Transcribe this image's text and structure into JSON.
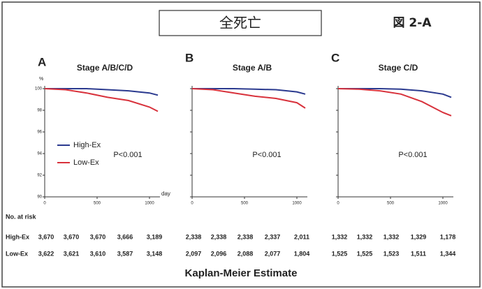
{
  "header": {
    "title": "全死亡",
    "figure": "図 2-A"
  },
  "chart_data": [
    {
      "type": "line",
      "letter": "A",
      "title": "Stage A/B/C/D",
      "xlabel": "day",
      "ylabel": "%",
      "legend": true,
      "xlim": [
        0,
        1100
      ],
      "ylim": [
        90,
        100
      ],
      "xticks": [
        0,
        500,
        1000
      ],
      "yticks": [
        90,
        92,
        94,
        96,
        98,
        100
      ],
      "ytick_labels": true,
      "x": [
        0,
        200,
        400,
        600,
        800,
        1000,
        1080
      ],
      "series": [
        {
          "name": "High-Ex",
          "color": "#2b3a8f",
          "values": [
            100,
            100,
            100,
            99.9,
            99.8,
            99.6,
            99.4
          ]
        },
        {
          "name": "Low-Ex",
          "color": "#d8323c",
          "values": [
            100,
            99.9,
            99.6,
            99.2,
            98.9,
            98.3,
            97.9
          ]
        }
      ],
      "annotation": "P<0.001"
    },
    {
      "type": "line",
      "letter": "B",
      "title": "Stage A/B",
      "legend": false,
      "xlim": [
        0,
        1100
      ],
      "ylim": [
        90,
        100
      ],
      "xticks": [
        0,
        500,
        1000
      ],
      "yticks": [
        90,
        92,
        94,
        96,
        98,
        100
      ],
      "ytick_labels": false,
      "x": [
        0,
        200,
        400,
        600,
        800,
        1000,
        1080
      ],
      "series": [
        {
          "color": "#2b3a8f",
          "values": [
            100,
            100,
            100,
            99.95,
            99.9,
            99.7,
            99.5
          ]
        },
        {
          "color": "#d8323c",
          "values": [
            100,
            99.9,
            99.6,
            99.3,
            99.1,
            98.7,
            98.2
          ]
        }
      ],
      "annotation": "P<0.001"
    },
    {
      "type": "line",
      "letter": "C",
      "title": "Stage C/D",
      "legend": false,
      "xlim": [
        0,
        1100
      ],
      "ylim": [
        90,
        100
      ],
      "xticks": [
        0,
        500,
        1000
      ],
      "yticks": [
        90,
        92,
        94,
        96,
        98,
        100
      ],
      "ytick_labels": false,
      "x": [
        0,
        200,
        400,
        600,
        800,
        1000,
        1080
      ],
      "series": [
        {
          "color": "#2b3a8f",
          "values": [
            100,
            100,
            100,
            99.95,
            99.8,
            99.5,
            99.2
          ]
        },
        {
          "color": "#d8323c",
          "values": [
            100,
            99.95,
            99.8,
            99.5,
            98.8,
            97.8,
            97.5
          ]
        }
      ],
      "annotation": "P<0.001"
    }
  ],
  "risk_table": {
    "title": "No. at risk",
    "rows": [
      {
        "label": "High-Ex",
        "values": [
          "3,670",
          "3,670",
          "3,670",
          "3,666",
          "3,189",
          "2,338",
          "2,338",
          "2,338",
          "2,337",
          "2,011",
          "1,332",
          "1,332",
          "1,332",
          "1,329",
          "1,178"
        ]
      },
      {
        "label": "Low-Ex",
        "values": [
          "3,622",
          "3,621",
          "3,610",
          "3,587",
          "3,148",
          "2,097",
          "2,096",
          "2,088",
          "2,077",
          "1,804",
          "1,525",
          "1,525",
          "1,523",
          "1,511",
          "1,344"
        ]
      }
    ]
  },
  "footer": "Kaplan-Meier Estimate"
}
